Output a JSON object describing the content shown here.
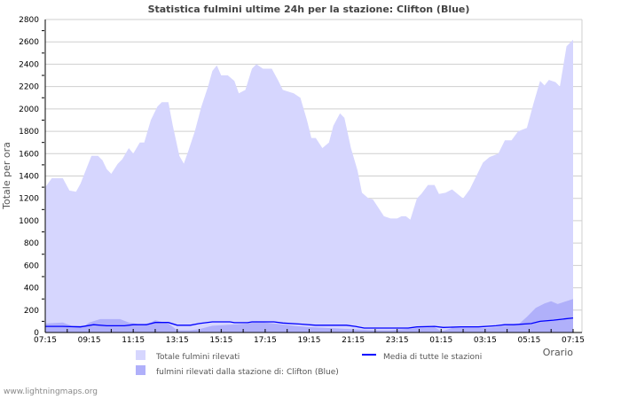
{
  "chart_data": {
    "type": "area",
    "title": "Statistica fulmini ultime 24h per la stazione: Clifton (Blue)",
    "xlabel": "Orario",
    "ylabel": "Totale per ora",
    "ylim": [
      0,
      2800
    ],
    "yticks": [
      0,
      200,
      400,
      600,
      800,
      1000,
      1200,
      1400,
      1600,
      1800,
      2000,
      2200,
      2400,
      2600,
      2800
    ],
    "x_unit": "hours since 07:15",
    "xlim": [
      0,
      24
    ],
    "xtick_labels": [
      "07:15",
      "09:15",
      "11:15",
      "13:15",
      "15:15",
      "17:15",
      "19:15",
      "21:15",
      "23:15",
      "01:15",
      "03:15",
      "05:15",
      "07:15"
    ],
    "grid": true,
    "legend_position": "bottom",
    "series": [
      {
        "name": "Totale fulmini rilevati",
        "kind": "area",
        "color": "#d6d6fe",
        "points": [
          [
            0,
            1300
          ],
          [
            0.3,
            1380
          ],
          [
            0.8,
            1380
          ],
          [
            1.1,
            1270
          ],
          [
            1.4,
            1260
          ],
          [
            1.6,
            1330
          ],
          [
            1.9,
            1480
          ],
          [
            2.1,
            1580
          ],
          [
            2.4,
            1580
          ],
          [
            2.6,
            1540
          ],
          [
            2.8,
            1460
          ],
          [
            3.0,
            1420
          ],
          [
            3.3,
            1510
          ],
          [
            3.5,
            1550
          ],
          [
            3.8,
            1650
          ],
          [
            4.0,
            1600
          ],
          [
            4.3,
            1700
          ],
          [
            4.5,
            1700
          ],
          [
            4.8,
            1900
          ],
          [
            5.1,
            2020
          ],
          [
            5.3,
            2060
          ],
          [
            5.6,
            2060
          ],
          [
            5.8,
            1850
          ],
          [
            6.1,
            1580
          ],
          [
            6.3,
            1510
          ],
          [
            6.5,
            1620
          ],
          [
            6.8,
            1800
          ],
          [
            7.1,
            2020
          ],
          [
            7.4,
            2200
          ],
          [
            7.6,
            2340
          ],
          [
            7.8,
            2390
          ],
          [
            8.0,
            2300
          ],
          [
            8.3,
            2300
          ],
          [
            8.6,
            2250
          ],
          [
            8.8,
            2140
          ],
          [
            9.1,
            2170
          ],
          [
            9.4,
            2360
          ],
          [
            9.6,
            2400
          ],
          [
            9.9,
            2360
          ],
          [
            10.3,
            2360
          ],
          [
            10.6,
            2250
          ],
          [
            10.8,
            2170
          ],
          [
            11.3,
            2140
          ],
          [
            11.6,
            2100
          ],
          [
            11.9,
            1900
          ],
          [
            12.1,
            1740
          ],
          [
            12.3,
            1740
          ],
          [
            12.6,
            1650
          ],
          [
            12.9,
            1700
          ],
          [
            13.1,
            1850
          ],
          [
            13.4,
            1960
          ],
          [
            13.6,
            1920
          ],
          [
            13.9,
            1650
          ],
          [
            14.2,
            1450
          ],
          [
            14.4,
            1250
          ],
          [
            14.7,
            1200
          ],
          [
            14.9,
            1190
          ],
          [
            15.2,
            1100
          ],
          [
            15.4,
            1040
          ],
          [
            15.7,
            1020
          ],
          [
            16.0,
            1020
          ],
          [
            16.2,
            1040
          ],
          [
            16.4,
            1040
          ],
          [
            16.6,
            1010
          ],
          [
            16.9,
            1200
          ],
          [
            17.1,
            1240
          ],
          [
            17.4,
            1320
          ],
          [
            17.7,
            1320
          ],
          [
            17.9,
            1240
          ],
          [
            18.2,
            1250
          ],
          [
            18.5,
            1280
          ],
          [
            18.8,
            1230
          ],
          [
            19.0,
            1200
          ],
          [
            19.3,
            1280
          ],
          [
            19.6,
            1400
          ],
          [
            19.9,
            1520
          ],
          [
            20.2,
            1570
          ],
          [
            20.6,
            1600
          ],
          [
            20.9,
            1720
          ],
          [
            21.2,
            1720
          ],
          [
            21.5,
            1800
          ],
          [
            21.9,
            1830
          ],
          [
            22.2,
            2050
          ],
          [
            22.5,
            2250
          ],
          [
            22.7,
            2210
          ],
          [
            22.9,
            2260
          ],
          [
            23.2,
            2240
          ],
          [
            23.4,
            2200
          ],
          [
            23.7,
            2560
          ],
          [
            24.0,
            2620
          ]
        ]
      },
      {
        "name": "fulmini rilevati dalla stazione di: Clifton (Blue)",
        "kind": "area",
        "color": "#b0b0fa",
        "points": [
          [
            0,
            80
          ],
          [
            0.8,
            90
          ],
          [
            1.2,
            60
          ],
          [
            1.8,
            60
          ],
          [
            2.0,
            90
          ],
          [
            2.5,
            120
          ],
          [
            3.4,
            120
          ],
          [
            3.8,
            90
          ],
          [
            4.4,
            70
          ],
          [
            4.8,
            90
          ],
          [
            5.0,
            110
          ],
          [
            5.6,
            80
          ],
          [
            6.0,
            20
          ],
          [
            6.6,
            20
          ],
          [
            7.0,
            30
          ],
          [
            7.6,
            60
          ],
          [
            8.4,
            70
          ],
          [
            9.2,
            80
          ],
          [
            9.6,
            100
          ],
          [
            10.4,
            80
          ],
          [
            11.3,
            60
          ],
          [
            11.9,
            50
          ],
          [
            12.9,
            40
          ],
          [
            13.9,
            30
          ],
          [
            14.9,
            20
          ],
          [
            15.7,
            20
          ],
          [
            16.3,
            30
          ],
          [
            16.9,
            40
          ],
          [
            17.7,
            50
          ],
          [
            18.0,
            10
          ],
          [
            18.5,
            40
          ],
          [
            20.1,
            40
          ],
          [
            20.9,
            60
          ],
          [
            21.5,
            70
          ],
          [
            21.9,
            140
          ],
          [
            22.3,
            220
          ],
          [
            22.7,
            260
          ],
          [
            23.0,
            280
          ],
          [
            23.3,
            255
          ],
          [
            24.0,
            300
          ]
        ]
      },
      {
        "name": "Media di tutte le stazioni",
        "kind": "line",
        "color": "#0000ff",
        "points": [
          [
            0,
            55
          ],
          [
            0.8,
            55
          ],
          [
            1.6,
            50
          ],
          [
            2.2,
            70
          ],
          [
            2.8,
            60
          ],
          [
            3.6,
            60
          ],
          [
            4.0,
            70
          ],
          [
            4.6,
            70
          ],
          [
            5.0,
            90
          ],
          [
            5.6,
            90
          ],
          [
            6.0,
            65
          ],
          [
            6.6,
            65
          ],
          [
            7.0,
            80
          ],
          [
            7.6,
            95
          ],
          [
            8.4,
            95
          ],
          [
            8.6,
            88
          ],
          [
            9.2,
            88
          ],
          [
            9.4,
            95
          ],
          [
            10.4,
            95
          ],
          [
            10.8,
            85
          ],
          [
            11.6,
            75
          ],
          [
            12.3,
            65
          ],
          [
            13.7,
            65
          ],
          [
            14.1,
            55
          ],
          [
            14.5,
            40
          ],
          [
            16.5,
            40
          ],
          [
            16.9,
            50
          ],
          [
            17.7,
            55
          ],
          [
            18.1,
            45
          ],
          [
            18.9,
            50
          ],
          [
            19.7,
            50
          ],
          [
            20.5,
            60
          ],
          [
            20.9,
            70
          ],
          [
            21.3,
            70
          ],
          [
            22.1,
            80
          ],
          [
            22.5,
            100
          ],
          [
            23.1,
            110
          ],
          [
            24.0,
            130
          ]
        ]
      }
    ]
  },
  "legend": {
    "total": "Totale fulmini rilevati",
    "station": "fulmini rilevati dalla stazione di: Clifton (Blue)",
    "mean": "Media di tutte le stazioni"
  },
  "footer": "www.lightningmaps.org"
}
